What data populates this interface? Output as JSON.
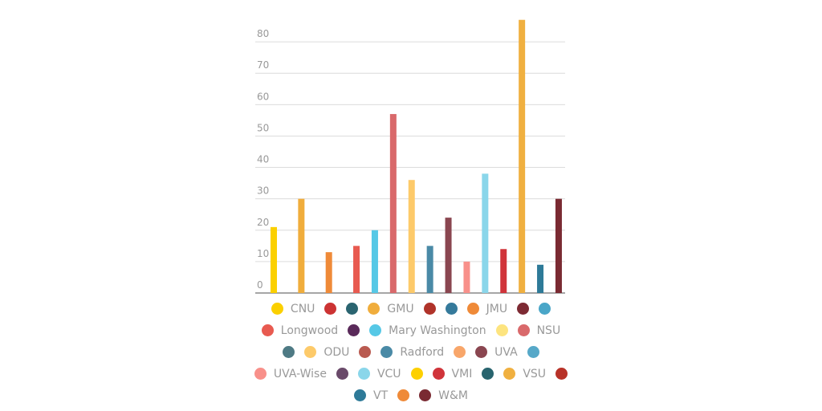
{
  "chart_data": {
    "type": "bar",
    "categories": [
      "CNU",
      null,
      null,
      "GMU",
      null,
      null,
      "JMU",
      null,
      null,
      "Longwood",
      null,
      "Mary Washington",
      null,
      "NSU",
      null,
      "ODU",
      null,
      "Radford",
      null,
      "UVA",
      null,
      "UVA-Wise",
      null,
      "VCU",
      null,
      "VMI",
      null,
      "VSU",
      null,
      "VT",
      null,
      "W&M"
    ],
    "values": [
      21,
      null,
      null,
      30,
      null,
      null,
      13,
      null,
      null,
      15,
      null,
      20,
      null,
      57,
      null,
      36,
      null,
      15,
      null,
      24,
      null,
      10,
      null,
      38,
      null,
      14,
      null,
      87,
      null,
      9,
      null,
      30
    ],
    "colors": [
      "#fbd000",
      "#cc3333",
      "#2a6470",
      "#f0ad3c",
      "#b0332a",
      "#357a9b",
      "#ef8a38",
      "#7d2a33",
      "#4aa6c8",
      "#e85a50",
      "#5a2a5a",
      "#56c8e6",
      "#fde47f",
      "#d9696b",
      "#4e7a84",
      "#fdca6a",
      "#b95a50",
      "#4a8aa6",
      "#f8a66a",
      "#8a4650",
      "#56a8c8",
      "#f8908a",
      "#6a4a6a",
      "#8ad6ea",
      "#fdd000",
      "#d0343a",
      "#28646e",
      "#f0b040",
      "#b83228",
      "#2e7a98",
      "#ef8a38",
      "#7a2a32"
    ],
    "ylim": [
      0,
      90
    ],
    "yticks": [
      0,
      10,
      20,
      30,
      40,
      50,
      60,
      70,
      80
    ],
    "grid": true
  }
}
